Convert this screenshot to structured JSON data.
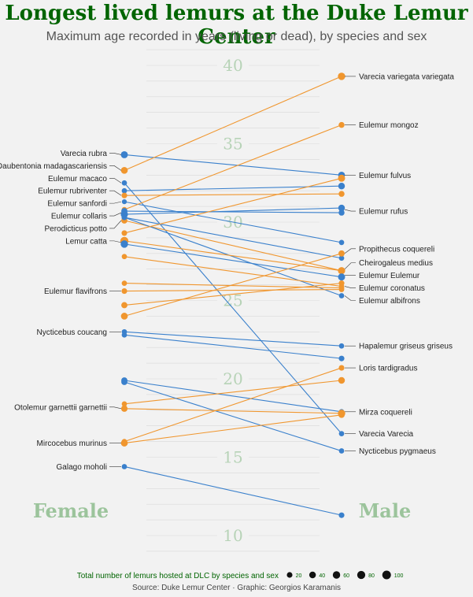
{
  "colors": {
    "female_line": "#f0962e",
    "male_line": "#3a80cc",
    "title": "#006400",
    "axis_text": "#b7d3b7",
    "side_text": "#9cc49c"
  },
  "chart_data": {
    "type": "slope",
    "title": "Longest lived lemurs at the Duke Lemur Center",
    "subtitle": "Maximum age recorded in years (living or dead), by species and sex",
    "x_categories": [
      "Female",
      "Male"
    ],
    "ylim": [
      8.5,
      41.5
    ],
    "y_ticks": [
      10,
      15,
      20,
      25,
      30,
      35,
      40
    ],
    "legend": {
      "title": "Total number of lemurs hosted at DLC by species and sex",
      "sizes": [
        20,
        40,
        60,
        80,
        100
      ]
    },
    "series": [
      {
        "color": "male",
        "female": 34.3,
        "male": 33.0,
        "female_n": 50,
        "male_n": 45
      },
      {
        "color": "female",
        "female": 33.3,
        "male": 39.3,
        "female_n": 45,
        "male_n": 60
      },
      {
        "color": "male",
        "female": 32.5,
        "male": 16.5,
        "female_n": 15,
        "male_n": 15
      },
      {
        "color": "male",
        "female": 32.0,
        "male": 32.3,
        "female_n": 15,
        "male_n": 40
      },
      {
        "color": "female",
        "female": 31.7,
        "male": 31.8,
        "female_n": 20,
        "male_n": 25
      },
      {
        "color": "male",
        "female": 31.3,
        "male": 28.7,
        "female_n": 10,
        "male_n": 15
      },
      {
        "color": "female",
        "female": 30.8,
        "male": 36.2,
        "female_n": 15,
        "male_n": 25
      },
      {
        "color": "male",
        "female": 30.7,
        "male": 30.6,
        "female_n": 30,
        "male_n": 25
      },
      {
        "color": "male",
        "female": 30.5,
        "male": 30.9,
        "female_n": 55,
        "male_n": 40
      },
      {
        "color": "male",
        "female": 30.3,
        "male": 27.7,
        "female_n": 20,
        "male_n": 15
      },
      {
        "color": "female",
        "female": 30.1,
        "male": 26.9,
        "female_n": 30,
        "male_n": 45
      },
      {
        "color": "male",
        "female": 30.3,
        "male": 25.3,
        "female_n": 20,
        "male_n": 15
      },
      {
        "color": "female",
        "female": 29.3,
        "male": 32.8,
        "female_n": 20,
        "male_n": 50
      },
      {
        "color": "female",
        "female": 28.8,
        "male": 26.9,
        "female_n": 80,
        "male_n": 55
      },
      {
        "color": "male",
        "female": 28.6,
        "male": 26.5,
        "female_n": 60,
        "male_n": 50
      },
      {
        "color": "female",
        "female": 27.8,
        "male": 25.9,
        "female_n": 15,
        "male_n": 15
      },
      {
        "color": "female",
        "female": 26.1,
        "male": 25.8,
        "female_n": 15,
        "male_n": 15
      },
      {
        "color": "female",
        "female": 25.6,
        "male": 25.7,
        "female_n": 20,
        "male_n": 15
      },
      {
        "color": "female",
        "female": 24.7,
        "male": 26.1,
        "female_n": 30,
        "male_n": 20
      },
      {
        "color": "female",
        "female": 24.0,
        "male": 28.0,
        "female_n": 45,
        "male_n": 30
      },
      {
        "color": "male",
        "female": 23.0,
        "male": 22.1,
        "female_n": 15,
        "male_n": 15
      },
      {
        "color": "male",
        "female": 22.8,
        "male": 21.3,
        "female_n": 15,
        "male_n": 20
      },
      {
        "color": "male",
        "female": 19.9,
        "male": 17.9,
        "female_n": 30,
        "male_n": 15
      },
      {
        "color": "female",
        "female": 18.4,
        "male": 19.9,
        "female_n": 15,
        "male_n": 40
      },
      {
        "color": "male",
        "female": 19.8,
        "male": 15.4,
        "female_n": 30,
        "male_n": 15
      },
      {
        "color": "female",
        "female": 18.1,
        "male": 17.8,
        "female_n": 35,
        "male_n": 60
      },
      {
        "color": "female",
        "female": 15.9,
        "male": 17.7,
        "female_n": 45,
        "male_n": 30
      },
      {
        "color": "female",
        "female": 16.0,
        "male": 20.7,
        "female_n": 15,
        "male_n": 20
      },
      {
        "color": "male",
        "female": 14.4,
        "male": 11.3,
        "female_n": 15,
        "male_n": 20
      }
    ],
    "labels_left": [
      {
        "text": "Varecia rubra",
        "y": 34.4,
        "target": 34.3
      },
      {
        "text": "Daubentonia madagascariensis",
        "y": 33.6,
        "target": 33.3
      },
      {
        "text": "Eulemur macaco",
        "y": 32.8,
        "target": 32.5
      },
      {
        "text": "Eulemur rubriventer",
        "y": 32.0,
        "target": 31.7
      },
      {
        "text": "Eulemur sanfordi",
        "y": 31.2,
        "target": 31.3
      },
      {
        "text": "Eulemur collaris",
        "y": 30.4,
        "target": 30.6
      },
      {
        "text": "Perodicticus potto",
        "y": 29.6,
        "target": 30.1
      },
      {
        "text": "Lemur catta",
        "y": 28.8,
        "target": 28.7
      },
      {
        "text": "Eulemur flavifrons",
        "y": 25.6,
        "target": 25.6
      },
      {
        "text": "Nycticebus coucang",
        "y": 23.0,
        "target": 23.0
      },
      {
        "text": "Otolemur garnettii garnettii",
        "y": 18.2,
        "target": 18.1
      },
      {
        "text": "Mircocebus murinus",
        "y": 15.9,
        "target": 15.9
      },
      {
        "text": "Galago moholi",
        "y": 14.4,
        "target": 14.4
      }
    ],
    "labels_right": [
      {
        "text": "Varecia variegata variegata",
        "y": 39.3,
        "target": 39.3
      },
      {
        "text": "Eulemur mongoz",
        "y": 36.2,
        "target": 36.2
      },
      {
        "text": "Eulemur fulvus",
        "y": 33.0,
        "target": 33.0
      },
      {
        "text": "Eulemur rufus",
        "y": 30.7,
        "target": 30.8
      },
      {
        "text": "Propithecus coquereli",
        "y": 28.3,
        "target": 28.0
      },
      {
        "text": "Cheirogaleus medius",
        "y": 27.4,
        "target": 27.0
      },
      {
        "text": "Eulemur Eulemur",
        "y": 26.6,
        "target": 26.6
      },
      {
        "text": "Eulemur coronatus",
        "y": 25.8,
        "target": 25.9
      },
      {
        "text": "Eulemur albifrons",
        "y": 25.0,
        "target": 25.3
      },
      {
        "text": "Hapalemur griseus griseus",
        "y": 22.1,
        "target": 22.1
      },
      {
        "text": "Loris tardigradus",
        "y": 20.7,
        "target": 20.7
      },
      {
        "text": "Mirza coquereli",
        "y": 17.9,
        "target": 17.9
      },
      {
        "text": "Varecia Varecia",
        "y": 16.5,
        "target": 16.5
      },
      {
        "text": "Nycticebus pygmaeus",
        "y": 15.4,
        "target": 15.4
      }
    ]
  },
  "caption": "Source: Duke Lemur Center · Graphic: Georgios Karamanis"
}
